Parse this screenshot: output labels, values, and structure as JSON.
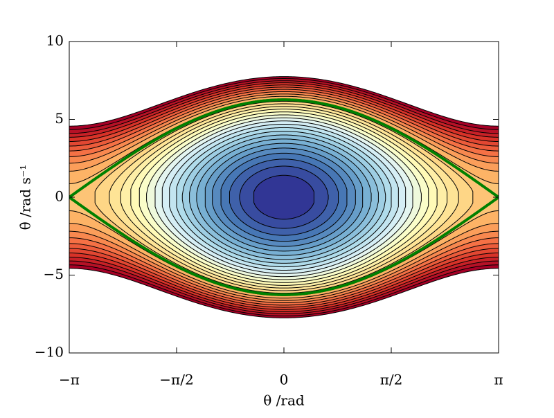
{
  "chart_data": {
    "type": "contour",
    "xlabel": "θ /rad",
    "ylabel": "θ̇ /rad s⁻¹",
    "xlim": [
      -3.14159,
      3.14159
    ],
    "ylim": [
      -10,
      10
    ],
    "xticks": [
      {
        "value": -3.14159,
        "label": "−π"
      },
      {
        "value": -1.5708,
        "label": "−π/2"
      },
      0,
      {
        "value": 1.5708,
        "label": "π/2"
      },
      {
        "value": 3.14159,
        "label": "π"
      }
    ],
    "yticks": [
      {
        "value": -10,
        "label": "−10"
      },
      {
        "value": -5,
        "label": "−5"
      },
      0,
      5,
      10
    ],
    "levels": [
      1.41,
      2.0,
      2.45,
      2.83,
      3.16,
      3.46,
      3.74,
      4.0,
      4.24,
      4.47,
      4.69,
      4.9,
      5.1,
      5.29,
      5.48,
      5.66,
      5.83,
      6.0,
      6.16,
      6.32,
      6.48,
      6.63,
      6.78,
      6.93,
      7.07,
      7.21,
      7.35,
      7.48,
      7.62,
      7.75
    ],
    "colormap": [
      "#313695",
      "#4575b4",
      "#74add1",
      "#abd9e9",
      "#e0f3f8",
      "#ffffbf",
      "#fee090",
      "#fdae61",
      "#f46d43",
      "#d73027",
      "#a50026"
    ],
    "contour_color": "#000000",
    "separatrix": {
      "peak": 6.26,
      "color": "#008000"
    }
  }
}
